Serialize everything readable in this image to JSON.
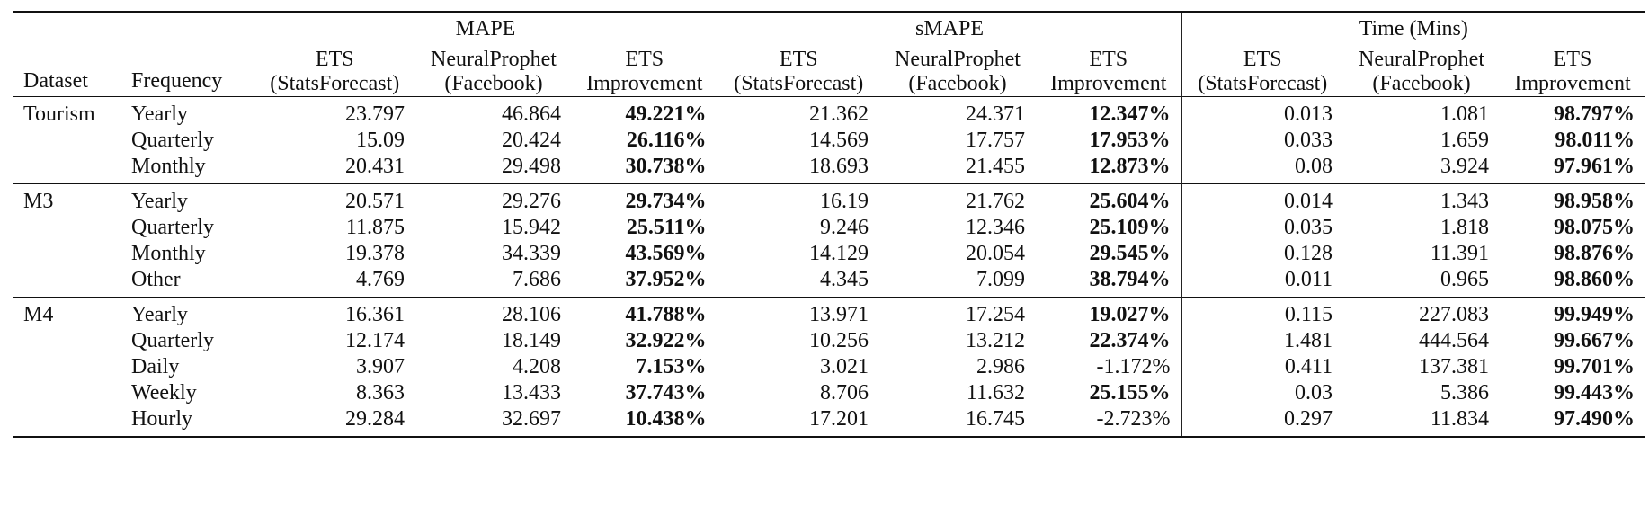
{
  "table": {
    "group_headers": [
      "MAPE",
      "sMAPE",
      "Time (Mins)"
    ],
    "col_headers": {
      "dataset": "Dataset",
      "frequency": "Frequency",
      "ets_line1": "ETS",
      "ets_line2": "(StatsForecast)",
      "np_line1": "NeuralProphet",
      "np_line2": "(Facebook)",
      "imp_line1": "ETS",
      "imp_line2": "Improvement"
    },
    "groups": [
      {
        "dataset": "Tourism",
        "rows": [
          {
            "freq": "Yearly",
            "v": [
              "23.797",
              "46.864",
              "49.221%",
              "21.362",
              "24.371",
              "12.347%",
              "0.013",
              "1.081",
              "98.797%"
            ]
          },
          {
            "freq": "Quarterly",
            "v": [
              "15.09",
              "20.424",
              "26.116%",
              "14.569",
              "17.757",
              "17.953%",
              "0.033",
              "1.659",
              "98.011%"
            ]
          },
          {
            "freq": "Monthly",
            "v": [
              "20.431",
              "29.498",
              "30.738%",
              "18.693",
              "21.455",
              "12.873%",
              "0.08",
              "3.924",
              "97.961%"
            ]
          }
        ]
      },
      {
        "dataset": "M3",
        "rows": [
          {
            "freq": "Yearly",
            "v": [
              "20.571",
              "29.276",
              "29.734%",
              "16.19",
              "21.762",
              "25.604%",
              "0.014",
              "1.343",
              "98.958%"
            ]
          },
          {
            "freq": "Quarterly",
            "v": [
              "11.875",
              "15.942",
              "25.511%",
              "9.246",
              "12.346",
              "25.109%",
              "0.035",
              "1.818",
              "98.075%"
            ]
          },
          {
            "freq": "Monthly",
            "v": [
              "19.378",
              "34.339",
              "43.569%",
              "14.129",
              "20.054",
              "29.545%",
              "0.128",
              "11.391",
              "98.876%"
            ]
          },
          {
            "freq": "Other",
            "v": [
              "4.769",
              "7.686",
              "37.952%",
              "4.345",
              "7.099",
              "38.794%",
              "0.011",
              "0.965",
              "98.860%"
            ]
          }
        ]
      },
      {
        "dataset": "M4",
        "rows": [
          {
            "freq": "Yearly",
            "v": [
              "16.361",
              "28.106",
              "41.788%",
              "13.971",
              "17.254",
              "19.027%",
              "0.115",
              "227.083",
              "99.949%"
            ]
          },
          {
            "freq": "Quarterly",
            "v": [
              "12.174",
              "18.149",
              "32.922%",
              "10.256",
              "13.212",
              "22.374%",
              "1.481",
              "444.564",
              "99.667%"
            ]
          },
          {
            "freq": "Daily",
            "v": [
              "3.907",
              "4.208",
              "7.153%",
              "3.021",
              "2.986",
              "-1.172%",
              "0.411",
              "137.381",
              "99.701%"
            ]
          },
          {
            "freq": "Weekly",
            "v": [
              "8.363",
              "13.433",
              "37.743%",
              "8.706",
              "11.632",
              "25.155%",
              "0.03",
              "5.386",
              "99.443%"
            ]
          },
          {
            "freq": "Hourly",
            "v": [
              "29.284",
              "32.697",
              "10.438%",
              "17.201",
              "16.745",
              "-2.723%",
              "0.297",
              "11.834",
              "97.490%"
            ]
          }
        ]
      }
    ]
  }
}
